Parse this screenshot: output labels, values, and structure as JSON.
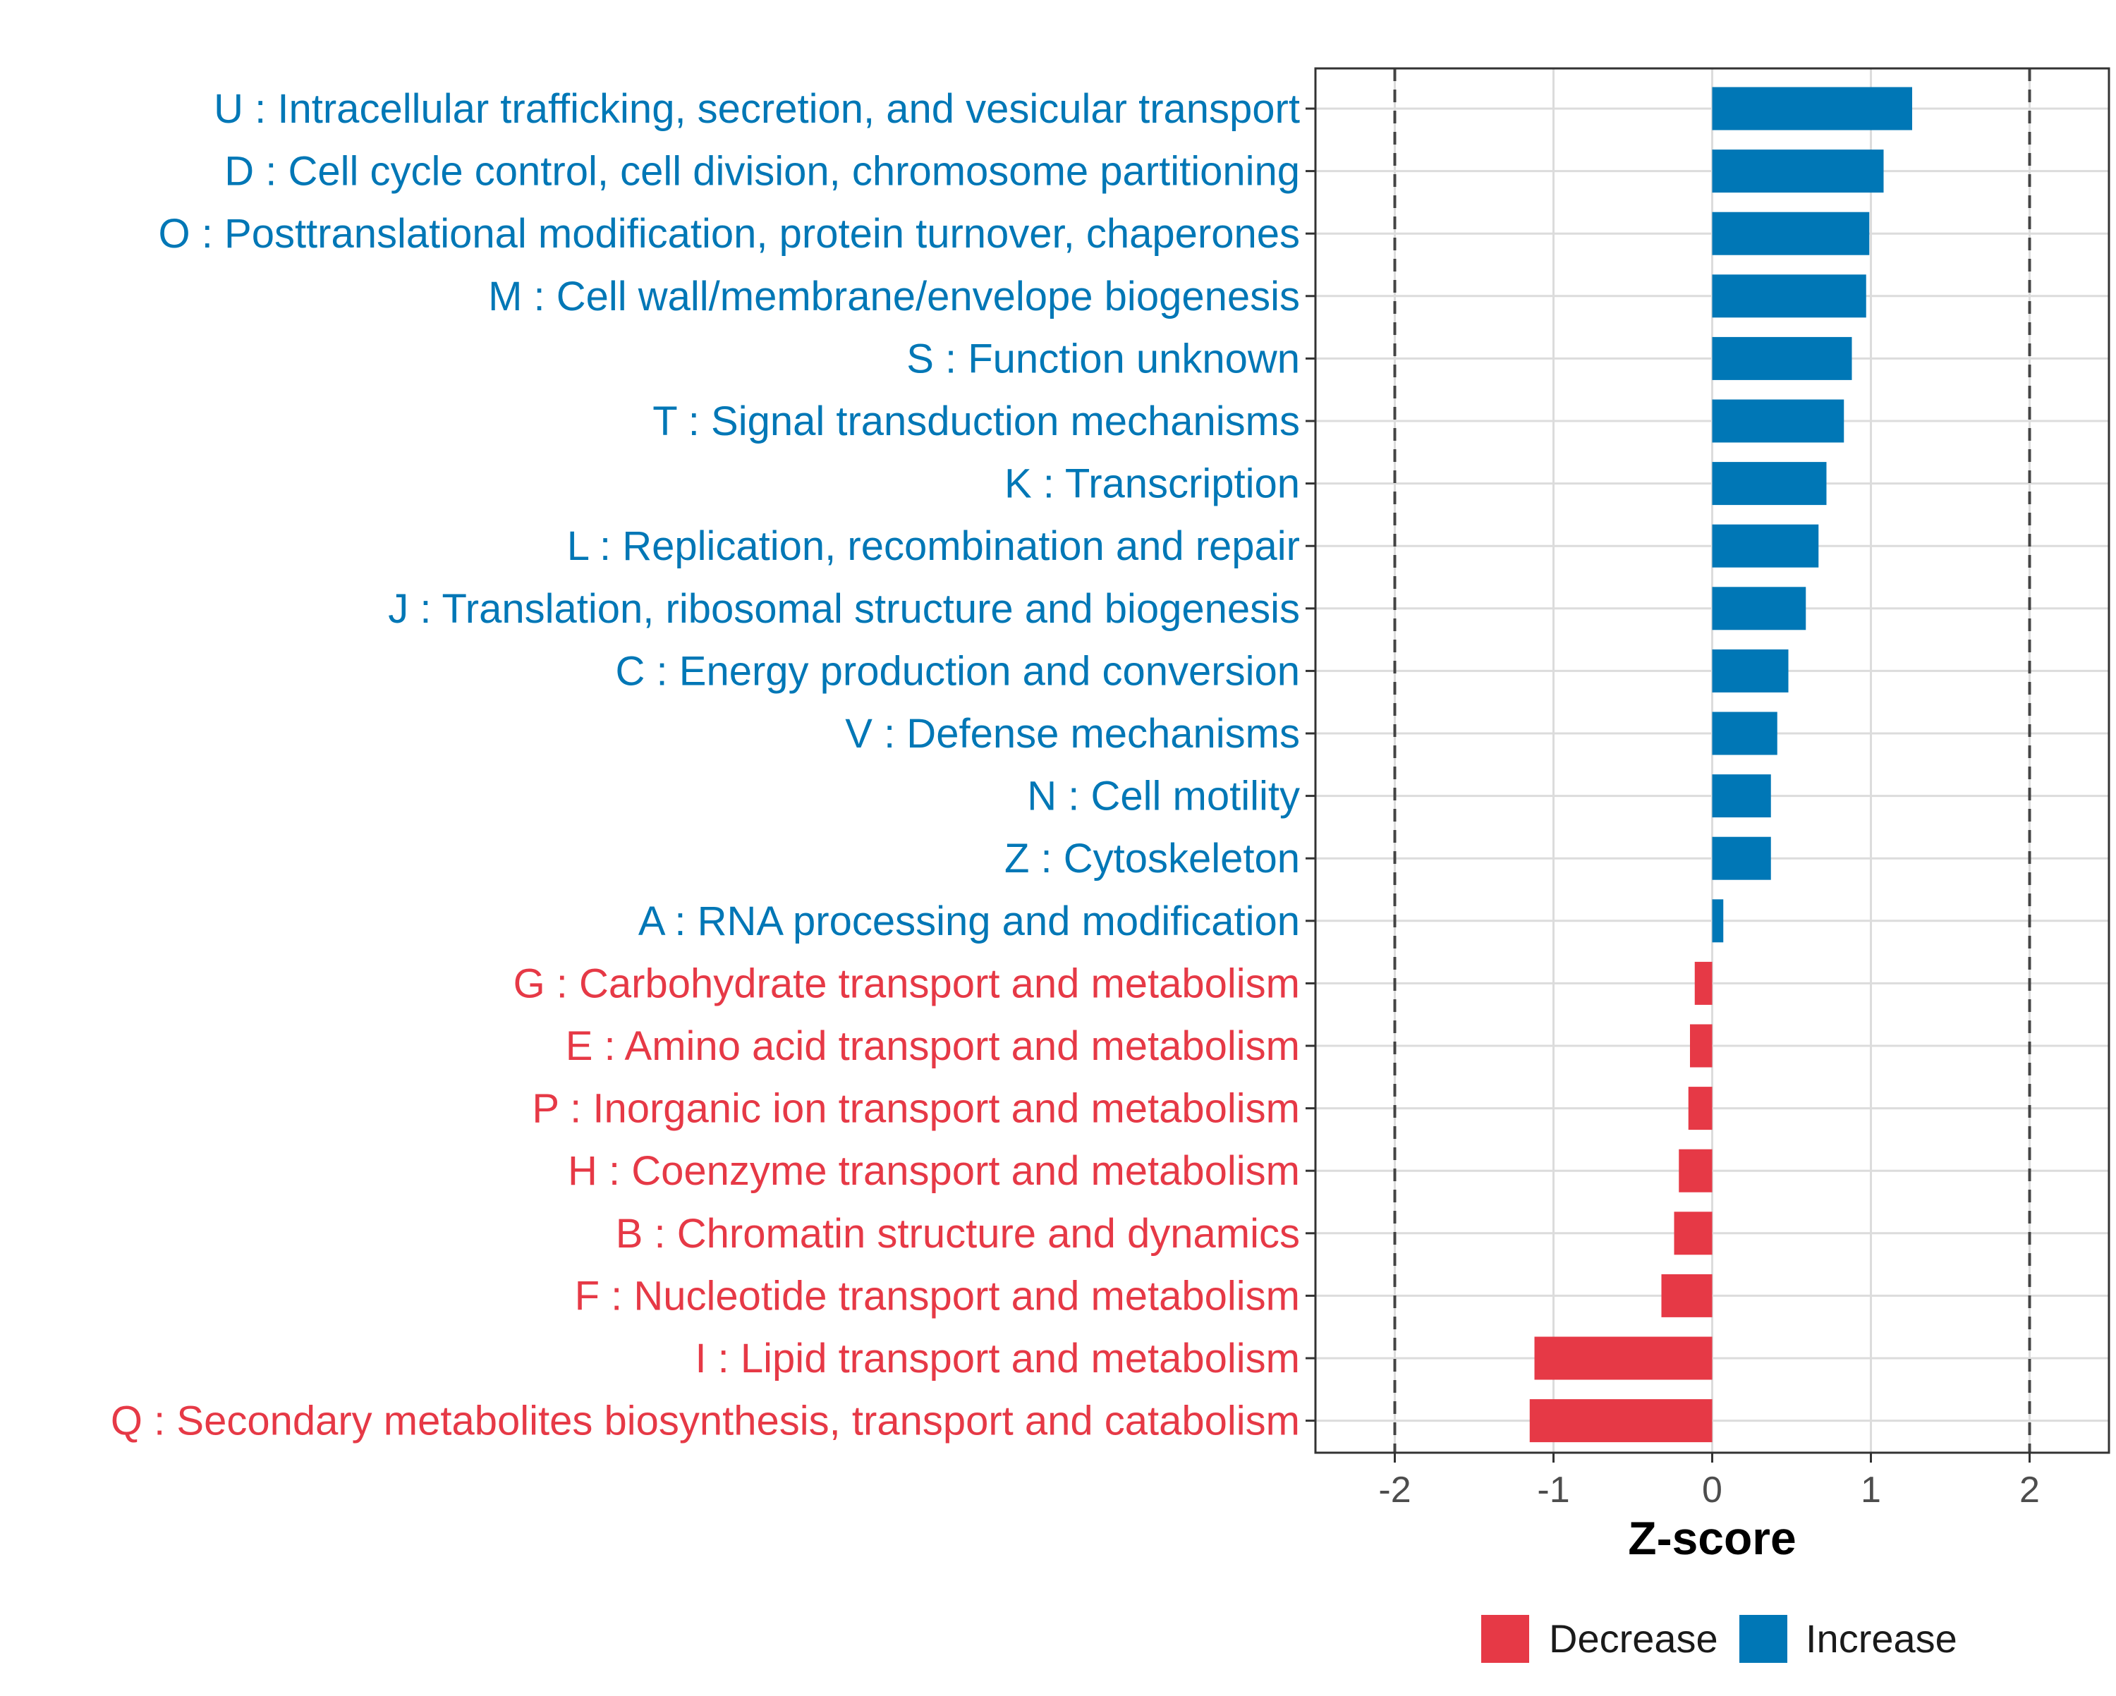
{
  "chart_data": {
    "type": "bar",
    "orientation": "horizontal",
    "title": "",
    "xlabel": "Z-score",
    "ylabel": "",
    "xlim": [
      -2.5,
      2.5
    ],
    "xticks": [
      -2,
      -1,
      0,
      1,
      2
    ],
    "xtick_labels": [
      "-2",
      "-1",
      "0",
      "1",
      "2"
    ],
    "reference_lines": [
      -2,
      2
    ],
    "grid": true,
    "categories": [
      "U : Intracellular trafficking, secretion, and vesicular transport",
      "D : Cell cycle control, cell division, chromosome partitioning",
      "O : Posttranslational modification, protein turnover, chaperones",
      "M : Cell wall/membrane/envelope biogenesis",
      "S : Function unknown",
      "T : Signal transduction mechanisms",
      "K : Transcription",
      "L : Replication, recombination and repair",
      "J : Translation, ribosomal structure and biogenesis",
      "C : Energy production and conversion",
      "V : Defense mechanisms",
      "N : Cell motility",
      "Z : Cytoskeleton",
      "A : RNA processing and modification",
      "G : Carbohydrate transport and metabolism",
      "E : Amino acid transport and metabolism",
      "P : Inorganic ion transport and metabolism",
      "H : Coenzyme transport and metabolism",
      "B : Chromatin structure and dynamics",
      "F : Nucleotide transport and metabolism",
      "I : Lipid transport and metabolism",
      "Q : Secondary metabolites biosynthesis, transport and catabolism"
    ],
    "values": [
      1.26,
      1.08,
      0.99,
      0.97,
      0.88,
      0.83,
      0.72,
      0.67,
      0.59,
      0.48,
      0.41,
      0.37,
      0.37,
      0.07,
      -0.11,
      -0.14,
      -0.15,
      -0.21,
      -0.24,
      -0.32,
      -1.12,
      -1.15
    ],
    "groups": [
      "Increase",
      "Increase",
      "Increase",
      "Increase",
      "Increase",
      "Increase",
      "Increase",
      "Increase",
      "Increase",
      "Increase",
      "Increase",
      "Increase",
      "Increase",
      "Increase",
      "Decrease",
      "Decrease",
      "Decrease",
      "Decrease",
      "Decrease",
      "Decrease",
      "Decrease",
      "Decrease"
    ],
    "legend": {
      "placement": "bottom",
      "entries": [
        {
          "name": "Decrease",
          "color": "#E63946"
        },
        {
          "name": "Increase",
          "color": "#0077B6"
        }
      ]
    }
  }
}
